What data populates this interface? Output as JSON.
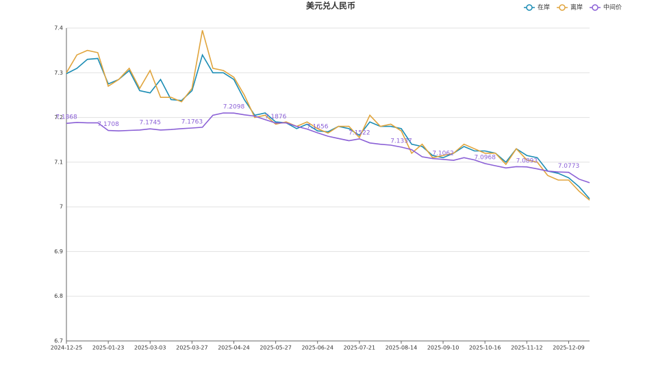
{
  "chart_data": {
    "type": "line",
    "title": "美元兑人民币",
    "categories": [
      "2024-12-25",
      null,
      null,
      null,
      "2025-01-23",
      null,
      null,
      null,
      "2025-03-03",
      null,
      null,
      null,
      "2025-03-27",
      null,
      null,
      null,
      "2025-04-24",
      null,
      null,
      null,
      "2025-05-27",
      null,
      null,
      null,
      "2025-06-24",
      null,
      null,
      null,
      "2025-07-21",
      null,
      null,
      null,
      "2025-08-14",
      null,
      null,
      null,
      "2025-09-10",
      null,
      null,
      null,
      "2025-10-16",
      null,
      null,
      null,
      "2025-11-12",
      null,
      null,
      null,
      "2025-12-09",
      null,
      null
    ],
    "series": [
      {
        "name": "在岸",
        "color": "#1a8cb4",
        "values": [
          7.298,
          7.31,
          7.33,
          7.332,
          7.275,
          7.285,
          7.305,
          7.26,
          7.255,
          7.285,
          7.24,
          7.238,
          7.26,
          7.34,
          7.3,
          7.3,
          7.285,
          7.24,
          7.205,
          7.21,
          7.19,
          7.188,
          7.175,
          7.185,
          7.17,
          7.168,
          7.18,
          7.175,
          7.16,
          7.19,
          7.18,
          7.18,
          7.175,
          7.14,
          7.135,
          7.115,
          7.11,
          7.12,
          7.135,
          7.125,
          7.125,
          7.12,
          7.1,
          7.13,
          7.115,
          7.11,
          7.08,
          7.075,
          7.065,
          7.045,
          7.018
        ]
      },
      {
        "name": "离岸",
        "color": "#e0a43c",
        "values": [
          7.3,
          7.34,
          7.35,
          7.345,
          7.27,
          7.285,
          7.31,
          7.265,
          7.305,
          7.245,
          7.245,
          7.235,
          7.265,
          7.395,
          7.31,
          7.305,
          7.29,
          7.25,
          7.2,
          7.205,
          7.185,
          7.19,
          7.18,
          7.19,
          7.175,
          7.165,
          7.18,
          7.18,
          7.155,
          7.205,
          7.18,
          7.185,
          7.17,
          7.12,
          7.14,
          7.11,
          7.115,
          7.12,
          7.14,
          7.13,
          7.12,
          7.12,
          7.095,
          7.13,
          7.105,
          7.1,
          7.07,
          7.06,
          7.06,
          7.035,
          7.015
        ]
      },
      {
        "name": "中间价",
        "color": "#8a5fd6",
        "values": [
          7.1868,
          7.189,
          7.188,
          7.188,
          7.1708,
          7.17,
          7.171,
          7.172,
          7.1745,
          7.172,
          7.173,
          7.175,
          7.1763,
          7.178,
          7.205,
          7.21,
          7.2098,
          7.206,
          7.203,
          7.195,
          7.1876,
          7.188,
          7.18,
          7.174,
          7.1656,
          7.158,
          7.153,
          7.148,
          7.1522,
          7.143,
          7.14,
          7.138,
          7.1337,
          7.128,
          7.112,
          7.108,
          7.1062,
          7.104,
          7.11,
          7.105,
          7.0968,
          7.092,
          7.087,
          7.09,
          7.0893,
          7.085,
          7.08,
          7.078,
          7.0773,
          7.062,
          7.054
        ],
        "value_labels": [
          "7.1868",
          null,
          null,
          null,
          "7.1708",
          null,
          null,
          null,
          "7.1745",
          null,
          null,
          null,
          "7.1763",
          null,
          null,
          null,
          "7.2098",
          null,
          null,
          null,
          "7.1876",
          null,
          null,
          null,
          "7.1656",
          null,
          null,
          null,
          "7.1522",
          null,
          null,
          null,
          "7.1337",
          null,
          null,
          null,
          "7.1062",
          null,
          null,
          null,
          "7.0968",
          null,
          null,
          null,
          "7.0893",
          null,
          null,
          null,
          "7.0773",
          null,
          null
        ]
      }
    ],
    "ylim": [
      6.7,
      7.4
    ],
    "yticks": [
      6.7,
      6.8,
      6.9,
      7,
      7.1,
      7.2,
      7.3,
      7.4
    ],
    "grid": true,
    "legend": "top-right"
  }
}
